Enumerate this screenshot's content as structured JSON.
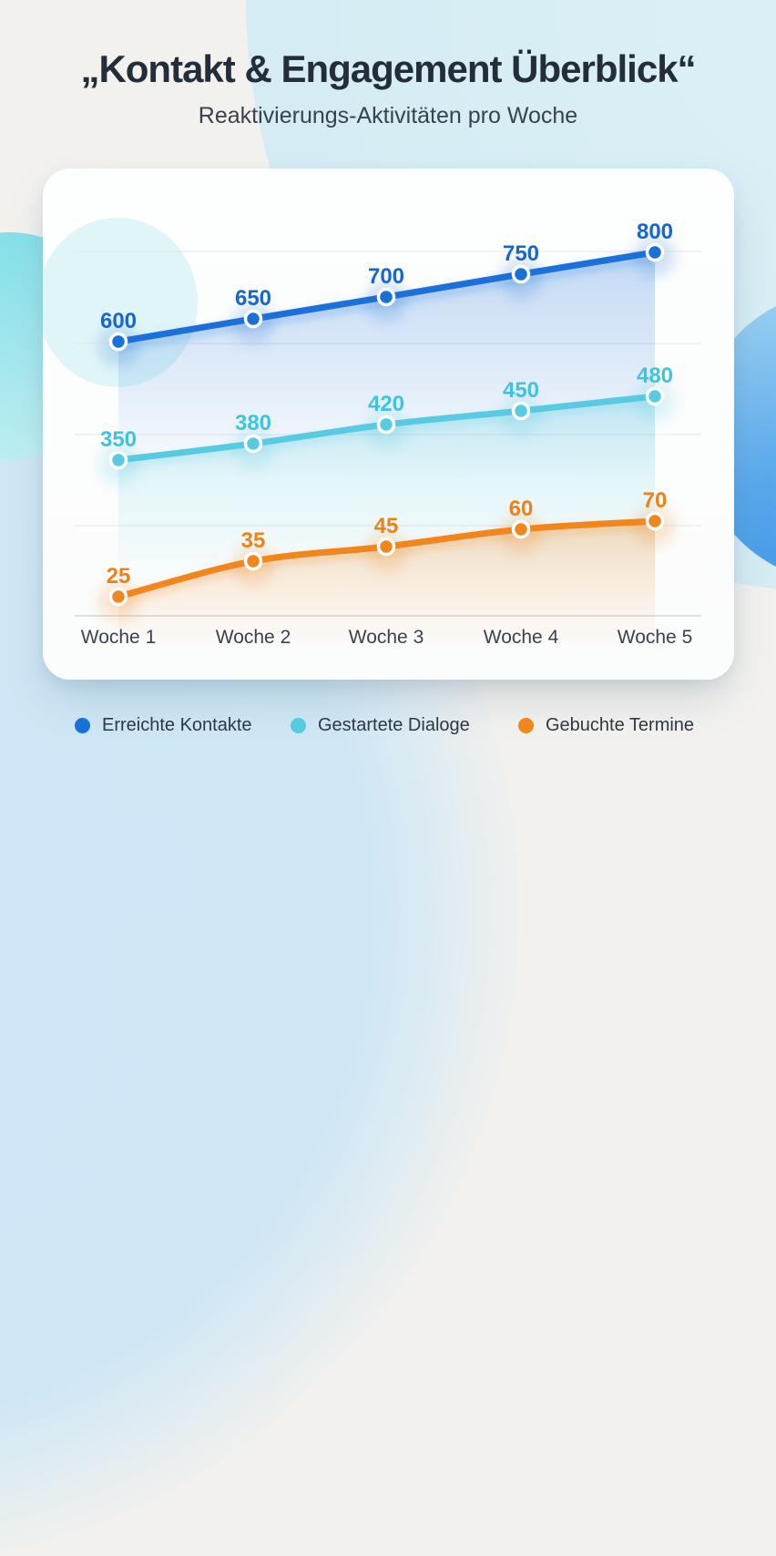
{
  "header": {
    "title": "„Kontakt & Engagement Überblick“",
    "subtitle": "Reaktivierungs-Aktivitäten pro Woche"
  },
  "chart_data": {
    "type": "line",
    "title": "„Kontakt & Engagement Überblick“",
    "subtitle": "Reaktivierungs-Aktivitäten pro Woche",
    "categories": [
      "Woche 1",
      "Woche 2",
      "Woche 3",
      "Woche 4",
      "Woche 5"
    ],
    "series": [
      {
        "name": "Erreichte Kontakte",
        "color": "#1a70d9",
        "label_color": "#1766cf",
        "values": [
          600,
          650,
          700,
          750,
          800
        ]
      },
      {
        "name": "Gestartete Dialoge",
        "color": "#58cbe2",
        "label_color": "#3fc3de",
        "values": [
          350,
          380,
          420,
          450,
          480
        ]
      },
      {
        "name": "Gebuchte Termine",
        "color": "#f0861e",
        "label_color": "#ee8117",
        "values": [
          25,
          35,
          45,
          60,
          70
        ]
      }
    ],
    "xlabel": "",
    "ylabel": "",
    "grid": true,
    "value_labels": true,
    "legend_position": "bottom",
    "axis_label_color": "#3a4250"
  }
}
